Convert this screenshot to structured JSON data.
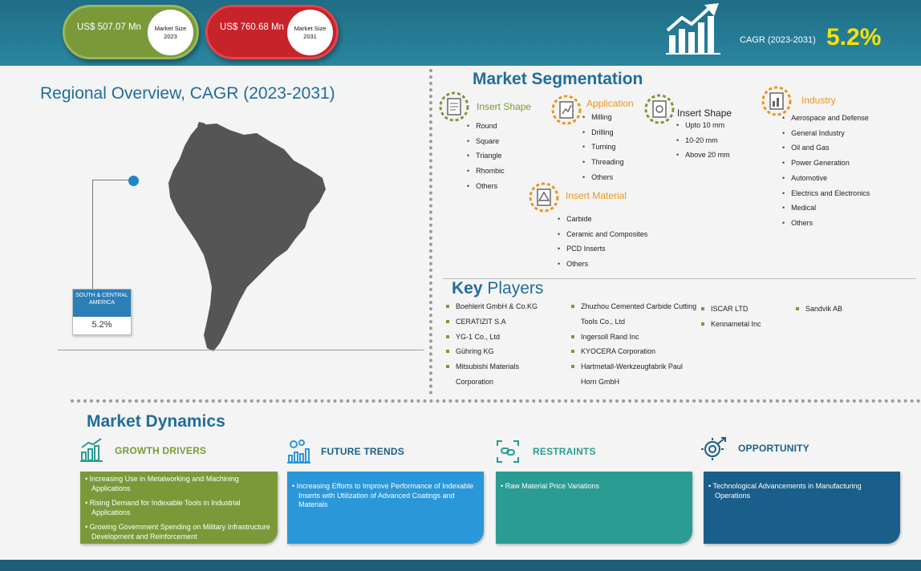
{
  "header": {
    "market_size_2023": {
      "value": "US$ 507.07 Mn",
      "label": "Market Size 2023"
    },
    "market_size_2031": {
      "value": "US$ 760.68 Mn",
      "label": "Market Size 2031"
    },
    "cagr_label": "CAGR (2023-2031)",
    "cagr_value": "5.2%",
    "icon": "growth-chart-icon"
  },
  "regional": {
    "title": "Regional Overview, CAGR (2023-2031)",
    "region_name": "SOUTH & CENTRAL AMERICA",
    "region_cagr": "5.2%",
    "map_icon": "south-america-map"
  },
  "segmentation": {
    "title": "Market Segmentation",
    "groups": [
      {
        "title": "Insert Shape",
        "items": [
          "Round",
          "Square",
          "Triangle",
          "Rhombic",
          "Others"
        ]
      },
      {
        "title": "Application",
        "items": [
          "Milling",
          "Drilling",
          "Turning",
          "Threading",
          "Others"
        ]
      },
      {
        "title": "Insert Shape",
        "items": [
          "Upto 10 mm",
          "10-20 mm",
          "Above 20 mm"
        ]
      },
      {
        "title": "Industry",
        "items": [
          "Aerospace and Defense",
          "General Industry",
          "Oil and Gas",
          "Power Generation",
          "Automotive",
          "Electrics and Electronics",
          "Medical",
          "Others"
        ]
      },
      {
        "title": "Insert Material",
        "items": [
          "Carbide",
          "Ceramic and Composites",
          "PCD Inserts",
          "Others"
        ]
      }
    ]
  },
  "key_players": {
    "title_bold": "Key",
    "title_rest": " Players",
    "columns": [
      [
        "Boehlerit GmbH & Co.KG",
        "CERATIZIT S.A",
        "YG-1 Co., Ltd",
        "Gühring KG",
        "Mitsubishi Materials Corporation"
      ],
      [
        "Zhuzhou Cemented Carbide Cutting Tools Co., Ltd",
        "Ingersoll Rand Inc",
        "KYOCERA Corporation",
        "Hartmetall-Werkzeugfabrik Paul Horn GmbH"
      ],
      [
        "ISCAR LTD",
        "Kennametal Inc"
      ],
      [
        "Sandvik AB"
      ]
    ]
  },
  "dynamics": {
    "title": "Market Dynamics",
    "growth_drivers": {
      "title": "GROWTH DRIVERS",
      "items": [
        "Increasing Use in Metalworking and Machining Applications",
        "Rising Demand for Indexable Tools in Industrial Applications",
        "Growing Government Spending on Military Infrastructure Development and Reinforcement"
      ]
    },
    "future_trends": {
      "title": "FUTURE TRENDS",
      "items": [
        "Increasing Efforts to Improve Performance of Indexable Inserts with Utilization of Advanced Coatings and Materials"
      ]
    },
    "restraints": {
      "title": "RESTRAINTS",
      "items": [
        "Raw Material Price Variations"
      ]
    },
    "opportunity": {
      "title": "OPPORTUNITY",
      "items": [
        "Technological Advancements in Manufacturing Operations"
      ]
    }
  },
  "colors": {
    "header": "#1f6d86",
    "title_blue": "#1f6d9a",
    "green": "#7a9a3a",
    "red": "#c7232b",
    "orange": "#e8961e",
    "blue": "#2a97d8",
    "teal": "#2a9c94",
    "navy": "#1a5f8a",
    "cagr_yellow": "#f3e400"
  }
}
